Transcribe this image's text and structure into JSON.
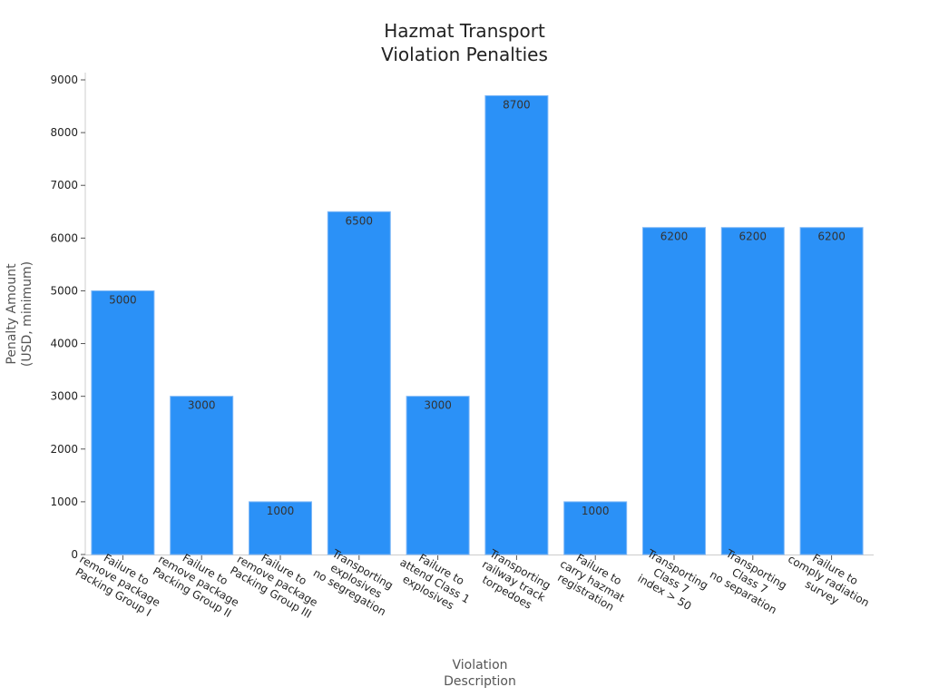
{
  "chart_data": {
    "type": "bar",
    "title": [
      "Hazmat Transport",
      "Violation Penalties"
    ],
    "xlabel": [
      "Violation",
      "Description"
    ],
    "ylabel": [
      "Penalty Amount",
      "(USD, minimum)"
    ],
    "ylim": [
      0,
      9000
    ],
    "yticks": [
      0,
      1000,
      2000,
      3000,
      4000,
      5000,
      6000,
      7000,
      8000,
      9000
    ],
    "grid": false,
    "bar_color": "#2b91f7",
    "categories": [
      [
        "Failure to",
        "remove package",
        "Packing Group I"
      ],
      [
        "Failure to",
        "remove package",
        "Packing Group II"
      ],
      [
        "Failure to",
        "remove package",
        "Packing Group III"
      ],
      [
        "Transporting",
        "explosives",
        "no segregation"
      ],
      [
        "Failure to",
        "attend Class 1",
        "explosives"
      ],
      [
        "Transporting",
        "railway track",
        "torpedoes"
      ],
      [
        "Failure to",
        "carry hazmat",
        "registration"
      ],
      [
        "Transporting",
        "Class 7",
        "index > 50"
      ],
      [
        "Transporting",
        "Class 7",
        "no separation"
      ],
      [
        "Failure to",
        "comply radiation",
        "survey"
      ]
    ],
    "values": [
      5000,
      3000,
      1000,
      6500,
      3000,
      8700,
      1000,
      6200,
      6200,
      6200
    ]
  }
}
